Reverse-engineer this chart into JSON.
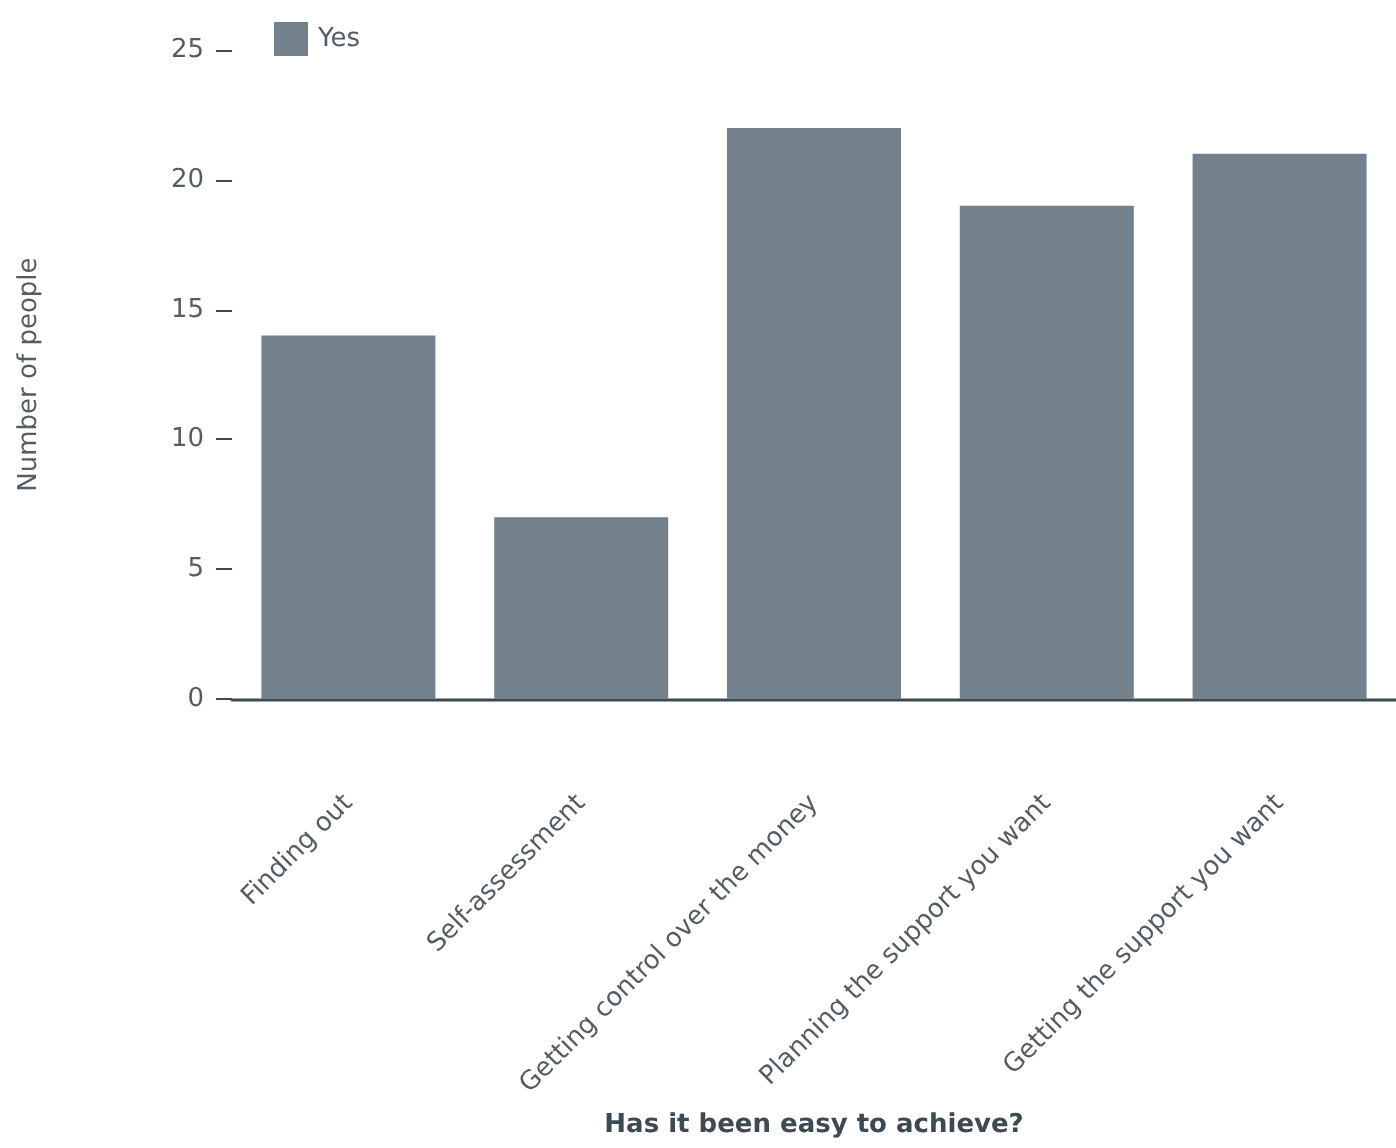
{
  "chart_data": {
    "type": "bar",
    "xlabel": "Has it been easy to achieve?",
    "ylabel": "Number of people",
    "categories": [
      "Finding out",
      "Self-assessment",
      "Getting control over the money",
      "Planning the support you want",
      "Getting the support you want"
    ],
    "series": [
      {
        "name": "Yes",
        "color": "#72818b",
        "values": [
          14,
          7,
          22,
          19,
          21
        ]
      }
    ],
    "ylim": [
      0,
      25
    ],
    "yticks": [
      0,
      5,
      10,
      15,
      20,
      25
    ],
    "grid": false,
    "legend": "top left"
  }
}
